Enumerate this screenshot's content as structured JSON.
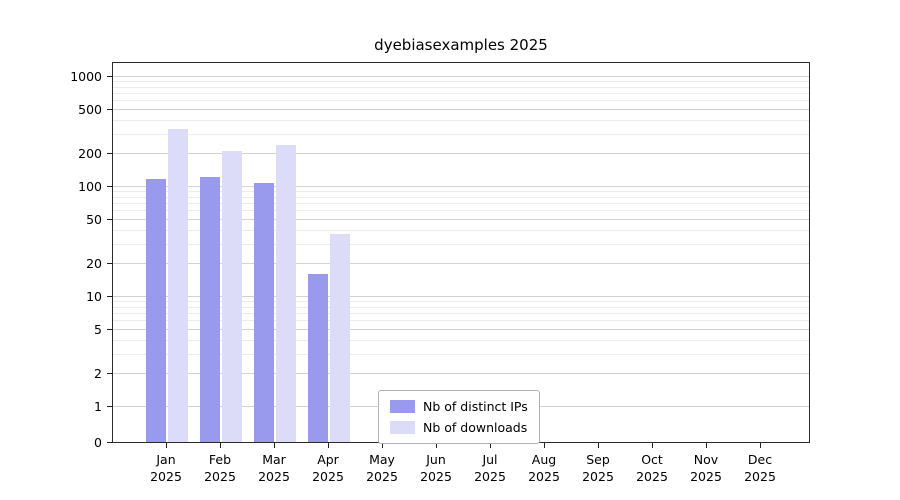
{
  "title": "dyebiasexamples 2025",
  "chart_data": {
    "type": "bar",
    "title": "dyebiasexamples 2025",
    "yscale": "log (with 0 baseline)",
    "ylim": [
      0,
      1400
    ],
    "grid": true,
    "legend_position": "lower center",
    "y_ticks": [
      0,
      1,
      2,
      5,
      10,
      20,
      50,
      100,
      200,
      500,
      1000
    ],
    "y_minor_ticks": [
      3,
      4,
      6,
      7,
      8,
      9,
      30,
      40,
      60,
      70,
      80,
      90,
      300,
      400,
      600,
      700,
      800,
      900
    ],
    "categories": [
      "Jan 2025",
      "Feb 2025",
      "Mar 2025",
      "Apr 2025",
      "May 2025",
      "Jun 2025",
      "Jul 2025",
      "Aug 2025",
      "Sep 2025",
      "Oct 2025",
      "Nov 2025",
      "Dec 2025"
    ],
    "series": [
      {
        "name": "Nb of distinct IPs",
        "color": "#9999ee",
        "values": [
          115,
          120,
          107,
          16,
          0,
          0,
          0,
          0,
          0,
          0,
          0,
          0
        ]
      },
      {
        "name": "Nb of downloads",
        "color": "#dcdcf8",
        "values": [
          330,
          210,
          238,
          37,
          0,
          0,
          0,
          0,
          0,
          0,
          0,
          0
        ]
      }
    ]
  }
}
